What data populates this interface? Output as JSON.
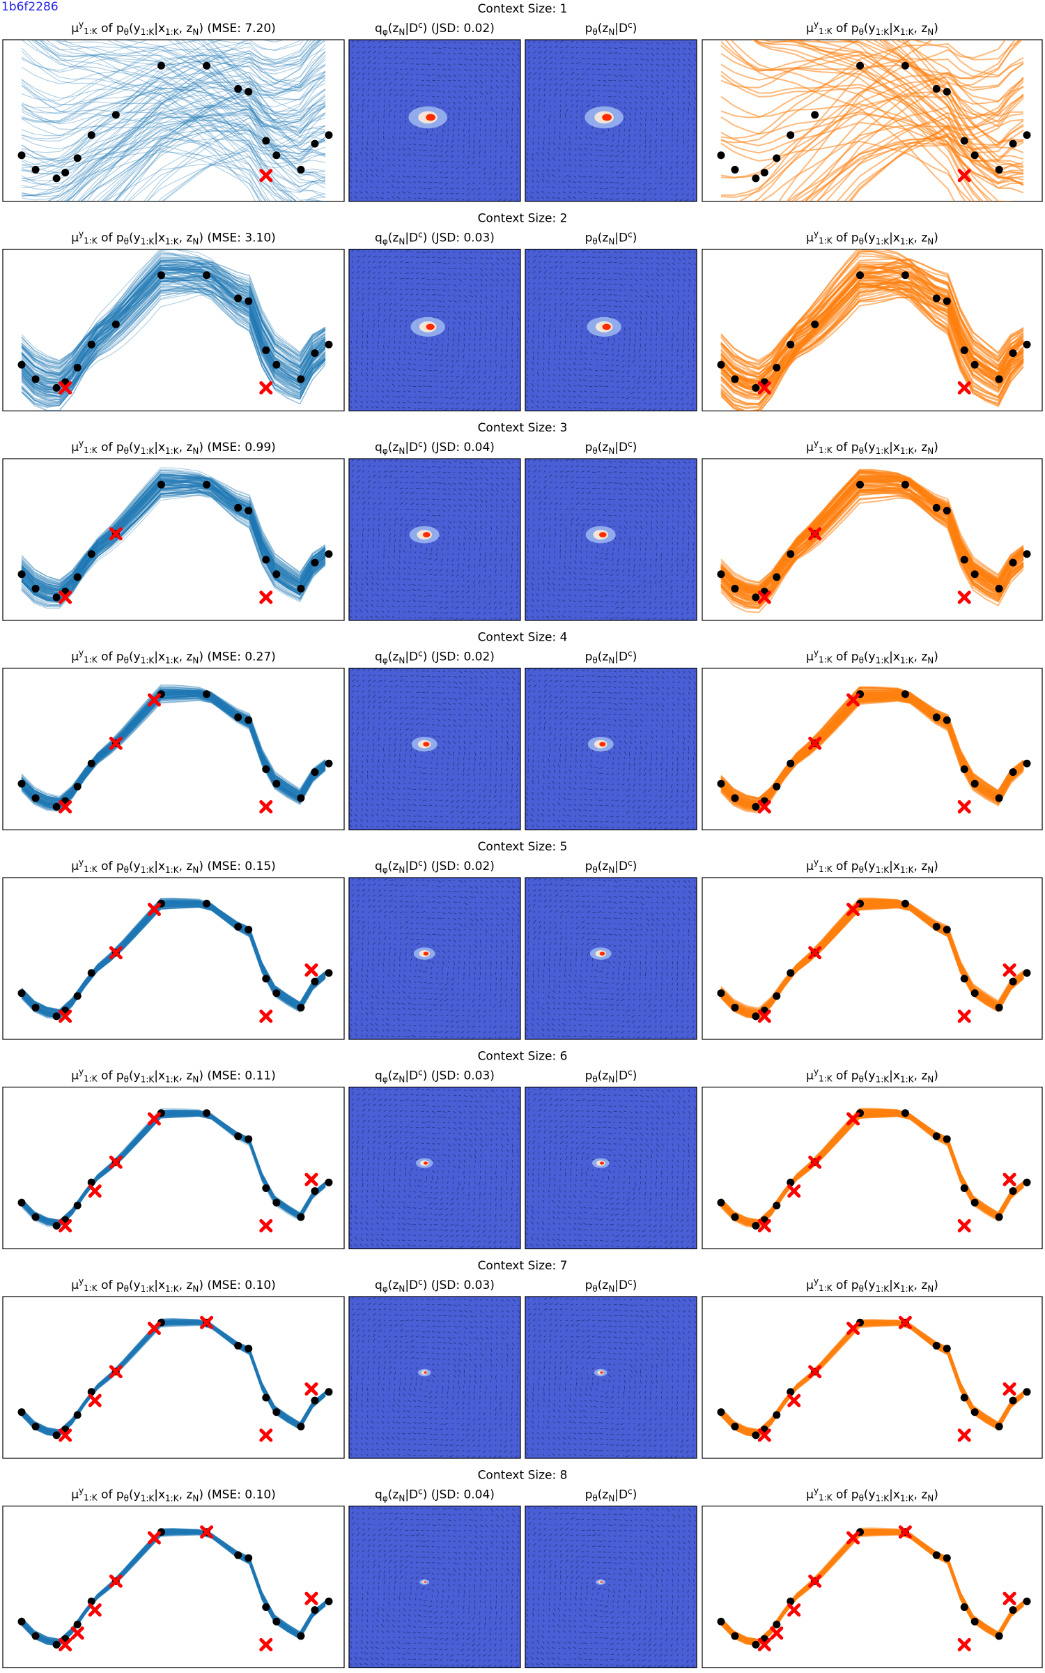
{
  "figure_id": "1b6f2286",
  "titles": {
    "prior_plot": {
      "prefix": "μ",
      "sup": "y",
      "sub": "1:K",
      "rest": " of p",
      "rest_sub": "θ",
      "args": "(y",
      "args_sub": "1:K",
      "args2": "|x",
      "args2_sub": "1:K",
      "args3": ", z",
      "args3_sub": "N",
      "args4": ")"
    },
    "q_density": "qφ(zN|Dc)",
    "p_density": "pθ(zN|Dc)",
    "posterior_plot": "μ^y_{1:K} of pθ(y1:K|x1:K, zN)"
  },
  "colors": {
    "prior_lines": "#1f77b4",
    "posterior_lines": "#ff7f0e",
    "target_points": "#000000",
    "context_markers": "#ff0000",
    "density_background": "#4a5fd6",
    "density_peak": "#ff2a00",
    "figure_id_text": "#1f1fe6"
  },
  "chart_data": {
    "type": "line",
    "targets_x": [
      -2.0,
      -1.6,
      -1.0,
      -0.75,
      -0.4,
      0.0,
      0.7,
      2.0,
      3.3,
      4.2,
      4.5,
      5.0,
      5.3,
      6.0,
      6.4,
      6.8
    ],
    "targets_y": [
      -0.55,
      -0.8,
      -0.95,
      -0.85,
      -0.6,
      -0.2,
      0.15,
      1.0,
      1.0,
      0.6,
      0.55,
      -0.3,
      -0.55,
      -0.8,
      -0.35,
      -0.2
    ],
    "panels": [
      {
        "context_size": 1,
        "label": "Context Size: 1",
        "mse": "7.20",
        "jsd": "0.02",
        "context_x": [
          5.0
        ],
        "context_y": [
          -0.9
        ]
      },
      {
        "context_size": 2,
        "label": "Context Size: 2",
        "mse": "3.10",
        "jsd": "0.03",
        "context_x": [
          -0.75,
          5.0
        ],
        "context_y": [
          -0.95,
          -0.95
        ]
      },
      {
        "context_size": 3,
        "label": "Context Size: 3",
        "mse": "0.99",
        "jsd": "0.04",
        "context_x": [
          -0.75,
          5.0,
          0.7
        ],
        "context_y": [
          -0.95,
          -0.95,
          0.15
        ]
      },
      {
        "context_size": 4,
        "label": "Context Size: 4",
        "mse": "0.27",
        "jsd": "0.02",
        "context_x": [
          -0.75,
          5.0,
          0.7,
          1.8
        ],
        "context_y": [
          -0.95,
          -0.95,
          0.15,
          0.9
        ]
      },
      {
        "context_size": 5,
        "label": "Context Size: 5",
        "mse": "0.15",
        "jsd": "0.02",
        "context_x": [
          -0.75,
          5.0,
          0.7,
          1.8,
          6.3
        ],
        "context_y": [
          -0.95,
          -0.95,
          0.15,
          0.9,
          -0.15
        ]
      },
      {
        "context_size": 6,
        "label": "Context Size: 6",
        "mse": "0.11",
        "jsd": "0.03",
        "context_x": [
          -0.75,
          5.0,
          0.7,
          1.8,
          6.3,
          0.1
        ],
        "context_y": [
          -0.95,
          -0.95,
          0.15,
          0.9,
          -0.15,
          -0.35
        ]
      },
      {
        "context_size": 7,
        "label": "Context Size: 7",
        "mse": "0.10",
        "jsd": "0.03",
        "context_x": [
          -0.75,
          5.0,
          0.7,
          1.8,
          6.3,
          0.1,
          3.3
        ],
        "context_y": [
          -0.95,
          -0.95,
          0.15,
          0.9,
          -0.15,
          -0.35,
          1.0
        ]
      },
      {
        "context_size": 8,
        "label": "Context Size: 8",
        "mse": "0.10",
        "jsd": "0.04",
        "context_x": [
          -0.75,
          5.0,
          0.7,
          1.8,
          6.3,
          0.1,
          3.3,
          -0.4
        ],
        "context_y": [
          -0.95,
          -0.95,
          0.15,
          0.9,
          -0.15,
          -0.35,
          1.0,
          -0.75
        ]
      }
    ]
  }
}
